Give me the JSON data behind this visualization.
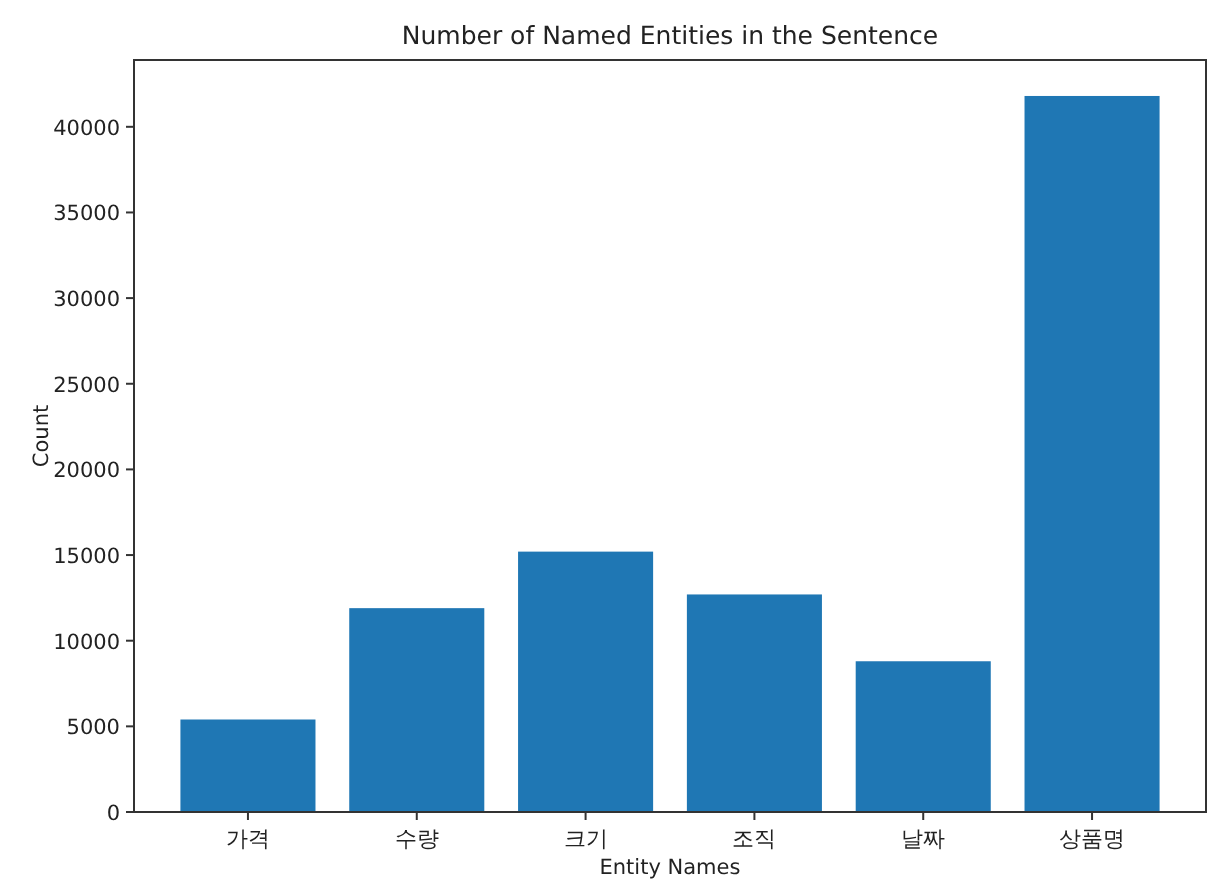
{
  "chart_data": {
    "type": "bar",
    "title": "Number of Named Entities in the Sentence",
    "xlabel": "Entity Names",
    "ylabel": "Count",
    "categories": [
      "가격",
      "수량",
      "크기",
      "조직",
      "날짜",
      "상품명"
    ],
    "values": [
      5400,
      11900,
      15200,
      12700,
      8800,
      41800
    ],
    "color": "#1f77b4",
    "ylim": [
      0,
      43900
    ],
    "yticks": [
      0,
      5000,
      10000,
      15000,
      20000,
      25000,
      30000,
      35000,
      40000
    ]
  }
}
